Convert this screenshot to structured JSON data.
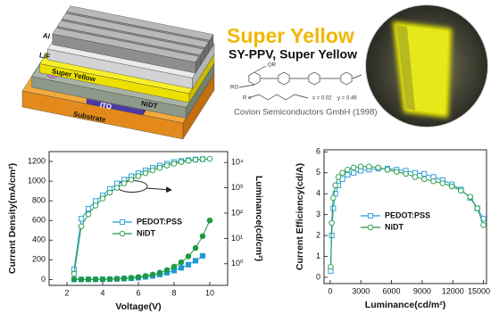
{
  "figure": {
    "layers": [
      "Al",
      "LiF",
      "Super Yellow",
      "NiDT",
      "ITO",
      "Substrate"
    ],
    "material_title": "Super Yellow",
    "material_subtitle": "SY-PPV, Super Yellow",
    "structure_labels": [
      "OR",
      "RO",
      "R =",
      "x = 0.02",
      "y = 0.49"
    ],
    "credit": "Covion Semiconductors GmbH (1998)"
  },
  "chart_data": [
    {
      "type": "line",
      "xlabel": "Voltage(V)",
      "ylabel": "Current Density(mA/cm²)",
      "y2label": "Luminance(cd/cm²)",
      "x": [
        2.4,
        2.8,
        3.2,
        3.6,
        4.0,
        4.4,
        4.8,
        5.2,
        5.6,
        6.0,
        6.4,
        6.8,
        7.2,
        7.6,
        8.0,
        8.4,
        8.8,
        9.2,
        9.6,
        10.0
      ],
      "xlim": [
        1,
        11
      ],
      "xticks": [
        2,
        4,
        6,
        8,
        10
      ],
      "ylim": [
        -60,
        1300
      ],
      "yticks": [
        0,
        200,
        400,
        600,
        800,
        1000,
        1200
      ],
      "y2lim": [
        0.14,
        27000
      ],
      "y2scale": "log",
      "y2ticks": [
        {
          "value": 1,
          "label": "10⁰"
        },
        {
          "value": 10,
          "label": "10¹"
        },
        {
          "value": 100,
          "label": "10²"
        },
        {
          "value": 1000,
          "label": "10³"
        },
        {
          "value": 10000,
          "label": "10⁴"
        }
      ],
      "series": [
        {
          "color": "#1f9bd7",
          "marker": "square",
          "filled": true,
          "values": [
            0,
            0,
            1,
            1,
            2,
            3,
            5,
            8,
            12,
            18,
            26,
            36,
            50,
            68,
            90,
            118,
            150,
            190,
            240,
            null
          ]
        },
        {
          "color": "#1e9a45",
          "marker": "circle",
          "filled": true,
          "values": [
            0,
            0,
            1,
            1,
            2,
            4,
            7,
            11,
            17,
            25,
            36,
            50,
            70,
            95,
            130,
            175,
            235,
            320,
            440,
            600
          ]
        },
        {
          "name": "PEDOT:PSS",
          "color": "#1f9bd7",
          "marker": "square",
          "filled": false,
          "axis": "y2",
          "values": [
            0.6,
            60,
            150,
            300,
            500,
            900,
            1500,
            2100,
            2900,
            3800,
            4900,
            6200,
            7600,
            9000,
            10500,
            11500,
            12500,
            13200,
            13600,
            null
          ]
        },
        {
          "name": "NiDT",
          "color": "#1e9a45",
          "marker": "circle",
          "filled": false,
          "axis": "y2",
          "values": [
            0.4,
            30,
            90,
            200,
            380,
            650,
            1000,
            1500,
            2100,
            2900,
            3800,
            4900,
            6200,
            7600,
            9000,
            10500,
            11800,
            12800,
            13600,
            14000
          ]
        }
      ]
    },
    {
      "type": "line",
      "xlabel": "Luminance(cd/m²)",
      "ylabel": "Current Efficiency(cd/A)",
      "x": [
        50,
        150,
        300,
        500,
        800,
        1200,
        1700,
        2300,
        3000,
        3800,
        4700,
        5600,
        6500,
        7400,
        8300,
        9200,
        10100,
        11000,
        11900,
        12800,
        13700,
        14400,
        15000
      ],
      "xlim": [
        -600,
        15300
      ],
      "xticks": [
        0,
        3000,
        6000,
        9000,
        12000,
        15000
      ],
      "ylim": [
        -0.3,
        6.1
      ],
      "yticks": [
        0,
        1,
        2,
        3,
        4,
        5,
        6
      ],
      "series": [
        {
          "name": "PEDOT:PSS",
          "color": "#1f9bd7",
          "marker": "square",
          "filled": false,
          "values": [
            0.3,
            2.0,
            3.3,
            4.0,
            4.4,
            4.7,
            4.9,
            5.0,
            5.1,
            5.15,
            5.2,
            5.2,
            5.15,
            5.1,
            5.0,
            4.95,
            4.8,
            4.65,
            4.45,
            4.2,
            3.8,
            3.3,
            2.8
          ]
        },
        {
          "name": "NiDT",
          "color": "#1e9a45",
          "marker": "circle",
          "filled": false,
          "values": [
            0.5,
            2.6,
            3.8,
            4.4,
            4.8,
            5.0,
            5.15,
            5.25,
            5.3,
            5.3,
            5.25,
            5.15,
            5.05,
            4.95,
            4.8,
            4.7,
            4.6,
            4.5,
            4.35,
            4.15,
            3.85,
            3.3,
            2.5
          ]
        }
      ]
    }
  ]
}
